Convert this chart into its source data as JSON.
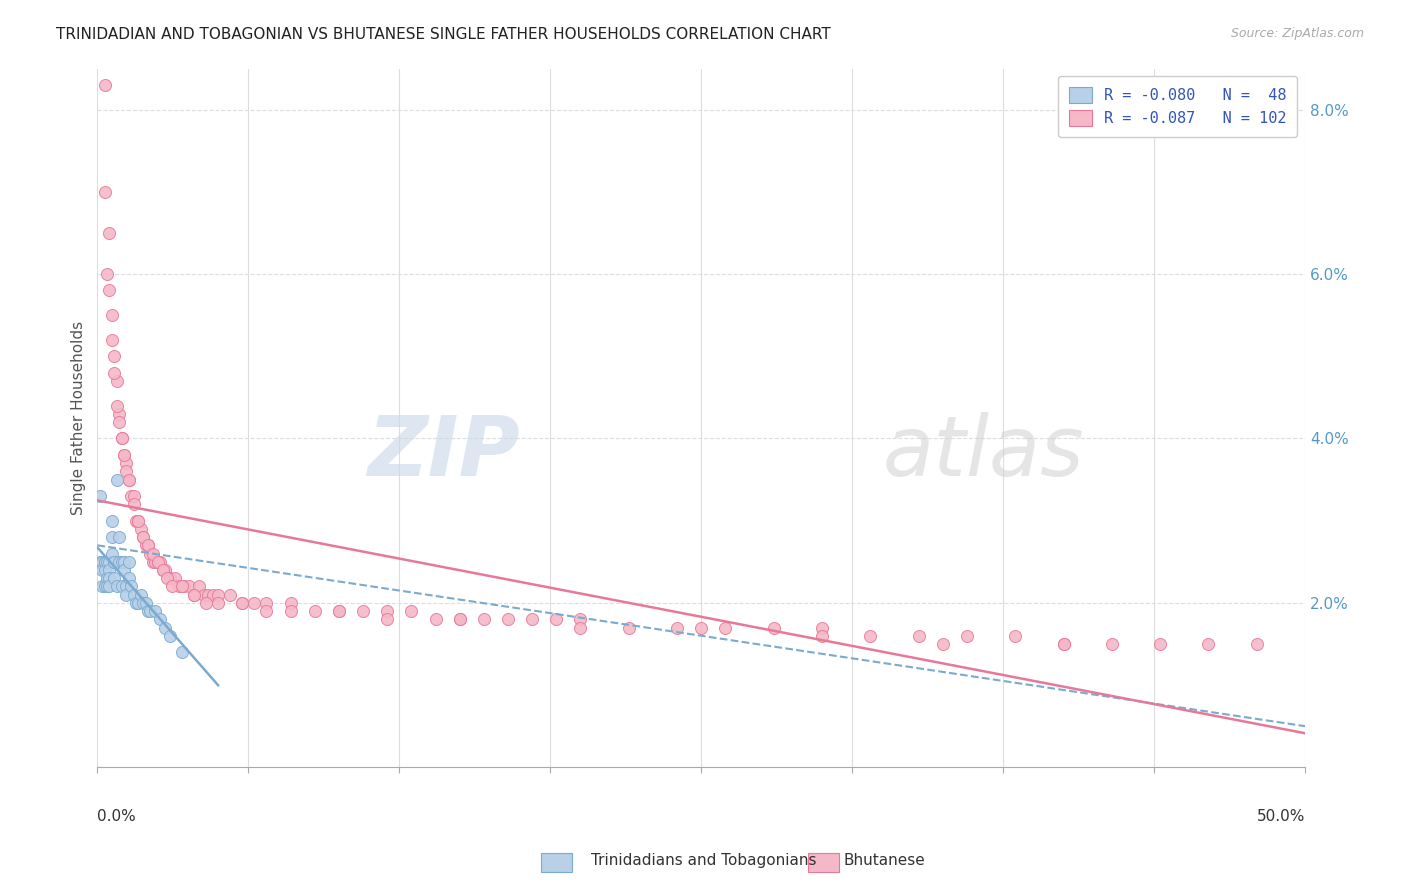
{
  "title": "TRINIDADIAN AND TOBAGONIAN VS BHUTANESE SINGLE FATHER HOUSEHOLDS CORRELATION CHART",
  "source": "Source: ZipAtlas.com",
  "ylabel": "Single Father Households",
  "xlim": [
    0.0,
    0.5
  ],
  "ylim": [
    0.0,
    0.085
  ],
  "ytick_vals": [
    0.0,
    0.02,
    0.04,
    0.06,
    0.08
  ],
  "ytick_labels": [
    "",
    "2.0%",
    "4.0%",
    "6.0%",
    "8.0%"
  ],
  "background_color": "#ffffff",
  "grid_color": "#dddddd",
  "series1_color": "#b8d0e8",
  "series2_color": "#f5b8c8",
  "trendline1_color": "#7aaad0",
  "trendline2_color": "#e87898",
  "series1_label": "Trinidadians and Tobagonians",
  "series2_label": "Bhutanese",
  "title_fontsize": 11,
  "legend_text_color": "#3355bb",
  "right_axis_color": "#5599cc",
  "series1_x": [
    0.001,
    0.001,
    0.002,
    0.002,
    0.002,
    0.003,
    0.003,
    0.003,
    0.003,
    0.004,
    0.004,
    0.004,
    0.005,
    0.005,
    0.005,
    0.005,
    0.006,
    0.006,
    0.006,
    0.007,
    0.007,
    0.007,
    0.008,
    0.008,
    0.009,
    0.009,
    0.01,
    0.01,
    0.011,
    0.011,
    0.012,
    0.012,
    0.013,
    0.013,
    0.014,
    0.015,
    0.016,
    0.017,
    0.018,
    0.019,
    0.02,
    0.021,
    0.022,
    0.024,
    0.026,
    0.028,
    0.03,
    0.035
  ],
  "series1_y": [
    0.025,
    0.033,
    0.025,
    0.024,
    0.022,
    0.025,
    0.025,
    0.024,
    0.022,
    0.025,
    0.023,
    0.022,
    0.025,
    0.024,
    0.023,
    0.022,
    0.03,
    0.028,
    0.026,
    0.025,
    0.025,
    0.023,
    0.035,
    0.022,
    0.028,
    0.025,
    0.025,
    0.022,
    0.025,
    0.024,
    0.022,
    0.021,
    0.025,
    0.023,
    0.022,
    0.021,
    0.02,
    0.02,
    0.021,
    0.02,
    0.02,
    0.019,
    0.019,
    0.019,
    0.018,
    0.017,
    0.016,
    0.014
  ],
  "series2_x": [
    0.003,
    0.005,
    0.006,
    0.007,
    0.008,
    0.009,
    0.01,
    0.011,
    0.012,
    0.013,
    0.014,
    0.015,
    0.016,
    0.017,
    0.018,
    0.019,
    0.02,
    0.021,
    0.022,
    0.023,
    0.024,
    0.025,
    0.026,
    0.027,
    0.028,
    0.03,
    0.032,
    0.034,
    0.036,
    0.038,
    0.04,
    0.042,
    0.044,
    0.046,
    0.048,
    0.05,
    0.055,
    0.06,
    0.065,
    0.07,
    0.08,
    0.09,
    0.1,
    0.11,
    0.12,
    0.13,
    0.14,
    0.15,
    0.16,
    0.17,
    0.18,
    0.19,
    0.2,
    0.22,
    0.24,
    0.26,
    0.28,
    0.3,
    0.32,
    0.34,
    0.36,
    0.38,
    0.4,
    0.42,
    0.44,
    0.46,
    0.48,
    0.003,
    0.004,
    0.005,
    0.006,
    0.007,
    0.008,
    0.009,
    0.01,
    0.011,
    0.012,
    0.013,
    0.015,
    0.017,
    0.019,
    0.021,
    0.023,
    0.025,
    0.027,
    0.029,
    0.031,
    0.035,
    0.04,
    0.045,
    0.05,
    0.06,
    0.07,
    0.08,
    0.1,
    0.12,
    0.15,
    0.2,
    0.25,
    0.3,
    0.35,
    0.4
  ],
  "series2_y": [
    0.083,
    0.065,
    0.055,
    0.05,
    0.047,
    0.043,
    0.04,
    0.038,
    0.037,
    0.035,
    0.033,
    0.033,
    0.03,
    0.03,
    0.029,
    0.028,
    0.027,
    0.027,
    0.026,
    0.025,
    0.025,
    0.025,
    0.025,
    0.024,
    0.024,
    0.023,
    0.023,
    0.022,
    0.022,
    0.022,
    0.021,
    0.022,
    0.021,
    0.021,
    0.021,
    0.021,
    0.021,
    0.02,
    0.02,
    0.02,
    0.02,
    0.019,
    0.019,
    0.019,
    0.019,
    0.019,
    0.018,
    0.018,
    0.018,
    0.018,
    0.018,
    0.018,
    0.018,
    0.017,
    0.017,
    0.017,
    0.017,
    0.017,
    0.016,
    0.016,
    0.016,
    0.016,
    0.015,
    0.015,
    0.015,
    0.015,
    0.015,
    0.07,
    0.06,
    0.058,
    0.052,
    0.048,
    0.044,
    0.042,
    0.04,
    0.038,
    0.036,
    0.035,
    0.032,
    0.03,
    0.028,
    0.027,
    0.026,
    0.025,
    0.024,
    0.023,
    0.022,
    0.022,
    0.021,
    0.02,
    0.02,
    0.02,
    0.019,
    0.019,
    0.019,
    0.018,
    0.018,
    0.017,
    0.017,
    0.016,
    0.015,
    0.015
  ]
}
